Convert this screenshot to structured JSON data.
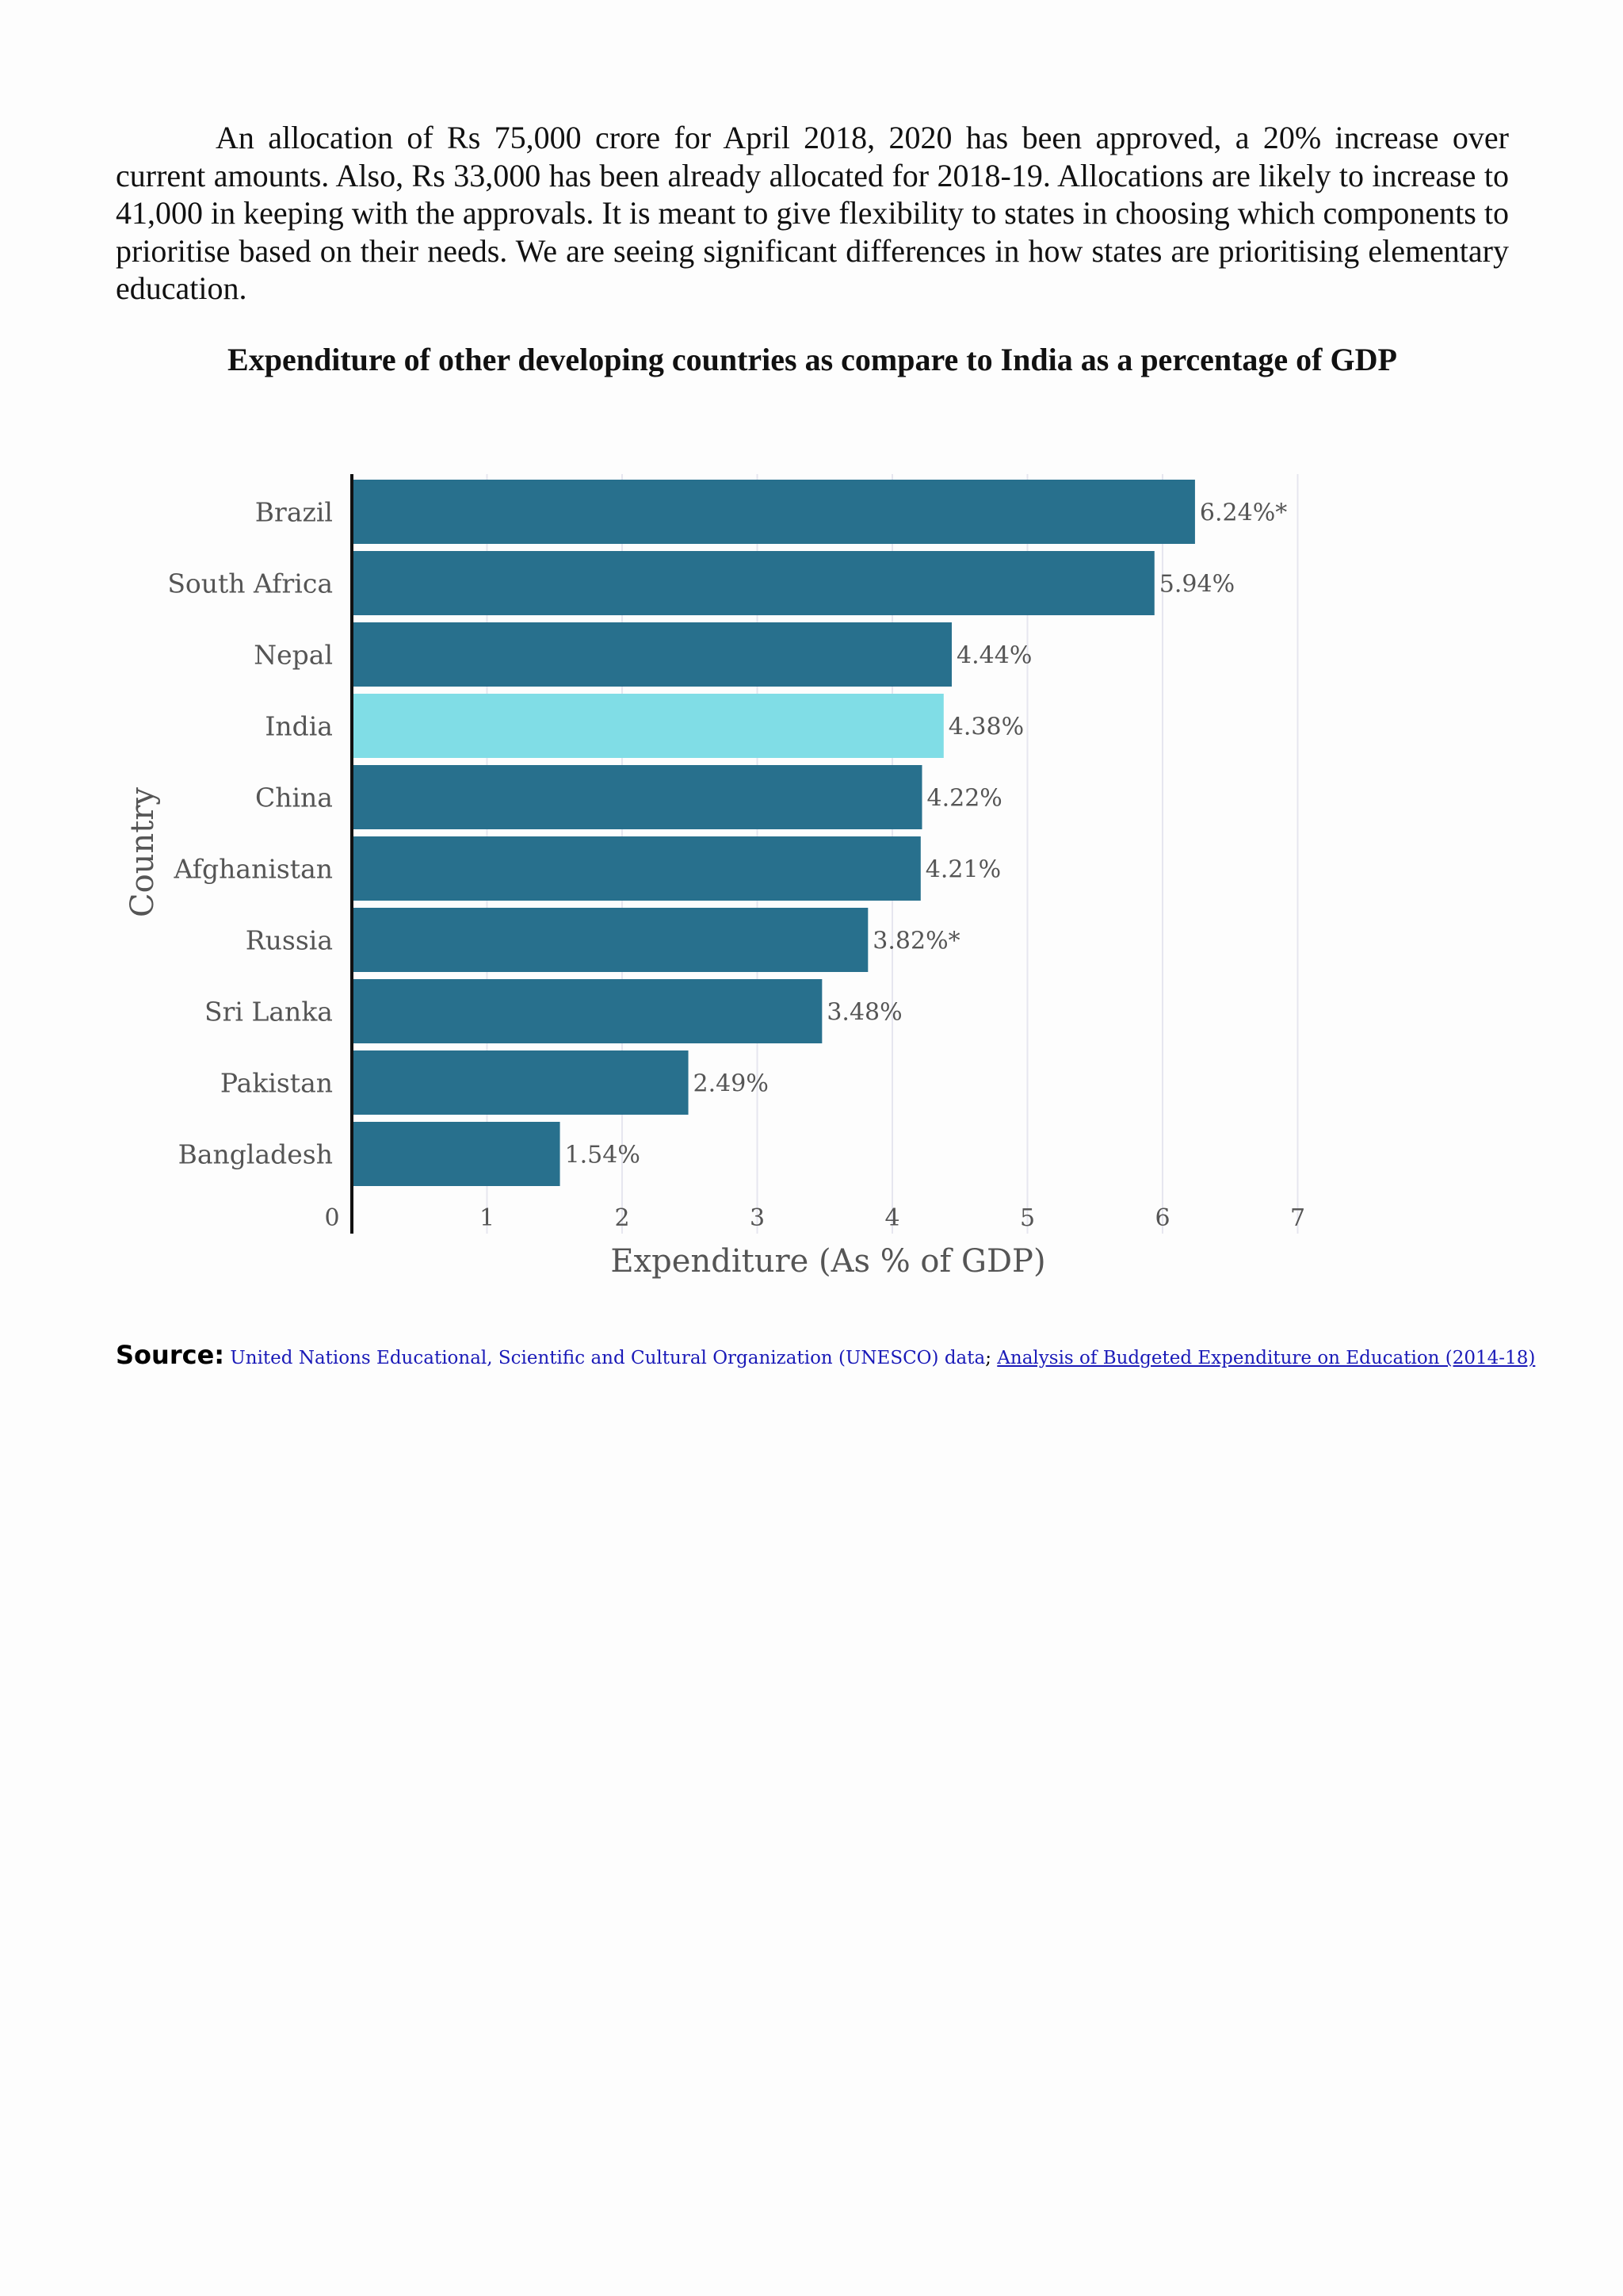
{
  "paragraph": "An allocation of Rs 75,000 crore for April 2018, 2020 has been approved, a 20% increase over current amounts. Also, Rs 33,000 has been already allocated for 2018-19. Allocations are likely to increase to 41,000 in keeping with the approvals. It is meant to give flexibility to states in choosing which components to prioritise based on their needs. We are seeing significant differences in how states are prioritising elementary education.",
  "chart_title": "Expenditure of other developing countries as compare to India as a percentage of GDP",
  "colors": {
    "bar": "#28708d",
    "highlight": "#80dde6",
    "grid": "#e6e6ef",
    "axis": "#111111",
    "text": "#555555"
  },
  "chart_data": {
    "type": "bar",
    "orientation": "horizontal",
    "title": "Expenditure of other developing countries as compare to India as a percentage of GDP",
    "xlabel": "Expenditure (As % of GDP)",
    "ylabel": "Country",
    "xlim": [
      0,
      7
    ],
    "xticks": [
      "0",
      "1",
      "2",
      "3",
      "4",
      "5",
      "6",
      "7"
    ],
    "categories": [
      "Brazil",
      "South Africa",
      "Nepal",
      "India",
      "China",
      "Afghanistan",
      "Russia",
      "Sri Lanka",
      "Pakistan",
      "Bangladesh"
    ],
    "values": [
      6.24,
      5.94,
      4.44,
      4.38,
      4.22,
      4.21,
      3.82,
      3.48,
      2.49,
      1.54
    ],
    "labels": [
      "6.24%*",
      "5.94%",
      "4.44%",
      "4.38%",
      "4.22%",
      "4.21%",
      "3.82%*",
      "3.48%",
      "2.49%",
      "1.54%"
    ],
    "highlight": "India",
    "grid": true
  },
  "source": {
    "label": "Source:",
    "text": "United Nations Educational, Scientific and Cultural Organization (UNESCO) data",
    "separator": ";",
    "link_text": "Analysis of Budgeted Expenditure on Education (2014-18)"
  }
}
